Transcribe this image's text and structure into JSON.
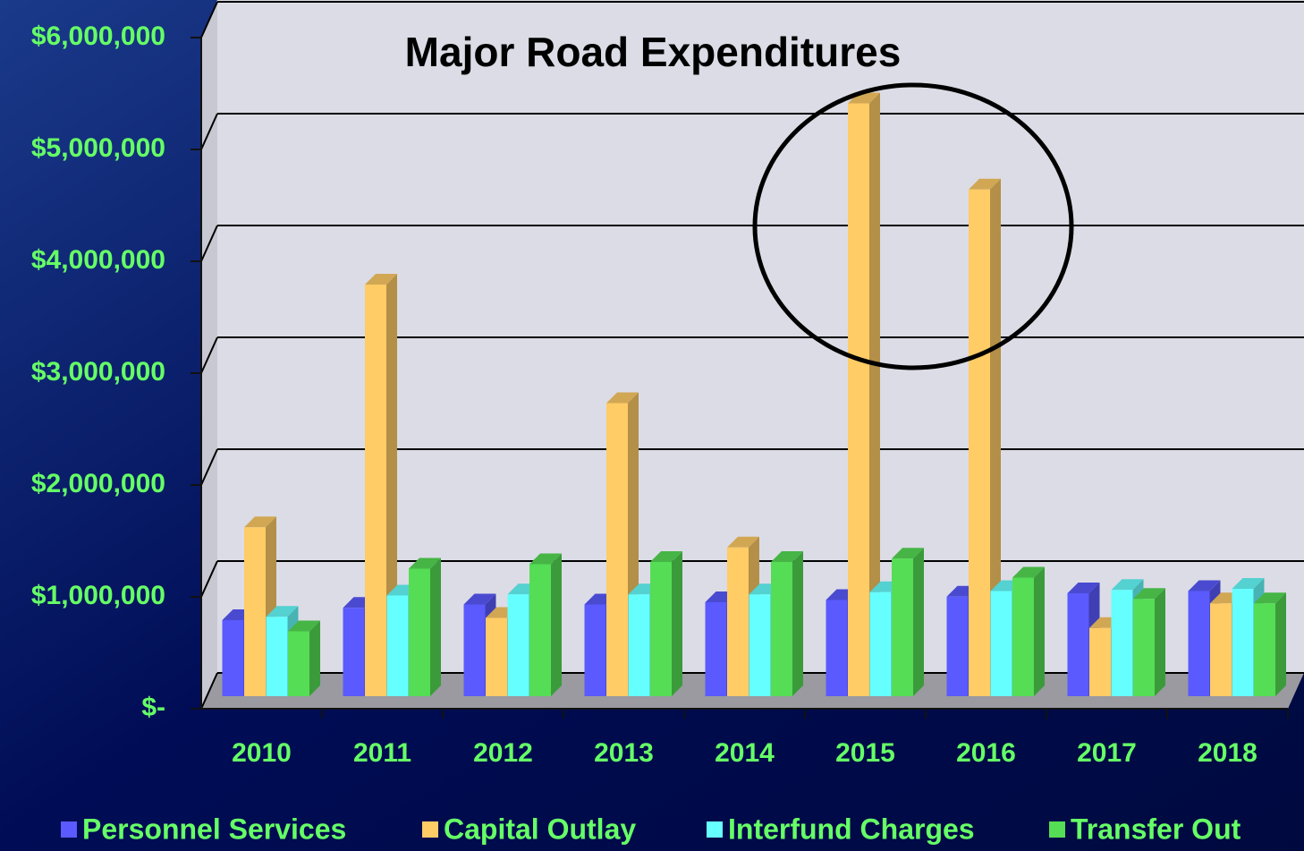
{
  "chart_data": {
    "type": "bar",
    "title": "Major Road Expenditures",
    "categories": [
      "2010",
      "2011",
      "2012",
      "2013",
      "2014",
      "2015",
      "2016",
      "2017",
      "2018"
    ],
    "series": [
      {
        "name": "Personnel Services",
        "color": "#5a5aff",
        "values": [
          680000,
          790000,
          820000,
          820000,
          840000,
          860000,
          890000,
          920000,
          940000
        ]
      },
      {
        "name": "Capital Outlay",
        "color": "#ffcc66",
        "values": [
          1510000,
          3680000,
          700000,
          2620000,
          1330000,
          5300000,
          4530000,
          610000,
          830000
        ]
      },
      {
        "name": "Interfund Charges",
        "color": "#66ffff",
        "values": [
          710000,
          900000,
          910000,
          910000,
          910000,
          930000,
          940000,
          950000,
          960000
        ]
      },
      {
        "name": "Transfer Out",
        "color": "#55dd55",
        "values": [
          580000,
          1140000,
          1180000,
          1200000,
          1200000,
          1230000,
          1060000,
          870000,
          830000
        ]
      }
    ],
    "ylim": [
      0,
      6000000
    ],
    "yticks": [
      {
        "value": 0,
        "label": "$-"
      },
      {
        "value": 1000000,
        "label": "$1,000,000"
      },
      {
        "value": 2000000,
        "label": "$2,000,000"
      },
      {
        "value": 3000000,
        "label": "$3,000,000"
      },
      {
        "value": 4000000,
        "label": "$4,000,000"
      },
      {
        "value": 5000000,
        "label": "$5,000,000"
      },
      {
        "value": 6000000,
        "label": "$6,000,000"
      }
    ],
    "grid": true
  }
}
